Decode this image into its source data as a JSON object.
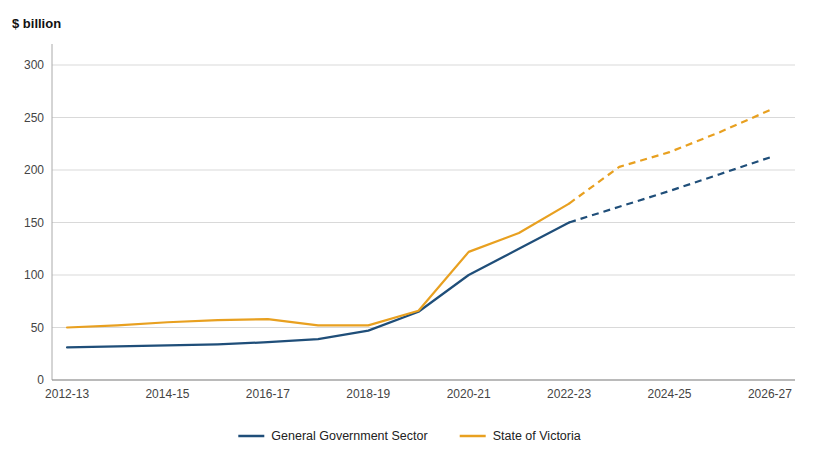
{
  "chart_data": {
    "type": "line",
    "ylabel": "$ billion",
    "categories": [
      "2012-13",
      null,
      "2014-15",
      null,
      "2016-17",
      null,
      "2018-19",
      null,
      "2020-21",
      null,
      "2022-23",
      null,
      "2024-25",
      null,
      "2026-27"
    ],
    "xlim": [
      -0.3,
      14.5
    ],
    "ylim": [
      0,
      320
    ],
    "yticks": [
      0,
      50,
      100,
      150,
      200,
      250,
      300
    ],
    "grid": true,
    "legend": "bottom",
    "series": [
      {
        "name": "General Government Sector",
        "color": "#1F4E79",
        "line_style": "solid",
        "values": [
          31,
          32,
          33,
          34,
          36,
          39,
          47,
          65,
          100,
          125,
          150,
          null,
          null,
          null,
          null
        ]
      },
      {
        "color": "#1F4E79",
        "line_style": "dashed",
        "values": [
          null,
          null,
          null,
          null,
          null,
          null,
          null,
          null,
          null,
          null,
          150,
          165,
          180,
          196,
          212
        ]
      },
      {
        "name": "State of Victoria",
        "color": "#E8A020",
        "line_style": "solid",
        "values": [
          50,
          52,
          55,
          57,
          58,
          52,
          52,
          66,
          122,
          140,
          168,
          null,
          null,
          null,
          null
        ]
      },
      {
        "color": "#E8A020",
        "line_style": "dashed",
        "values": [
          null,
          null,
          null,
          null,
          null,
          null,
          null,
          null,
          null,
          null,
          168,
          203,
          217,
          236,
          257
        ]
      }
    ]
  }
}
